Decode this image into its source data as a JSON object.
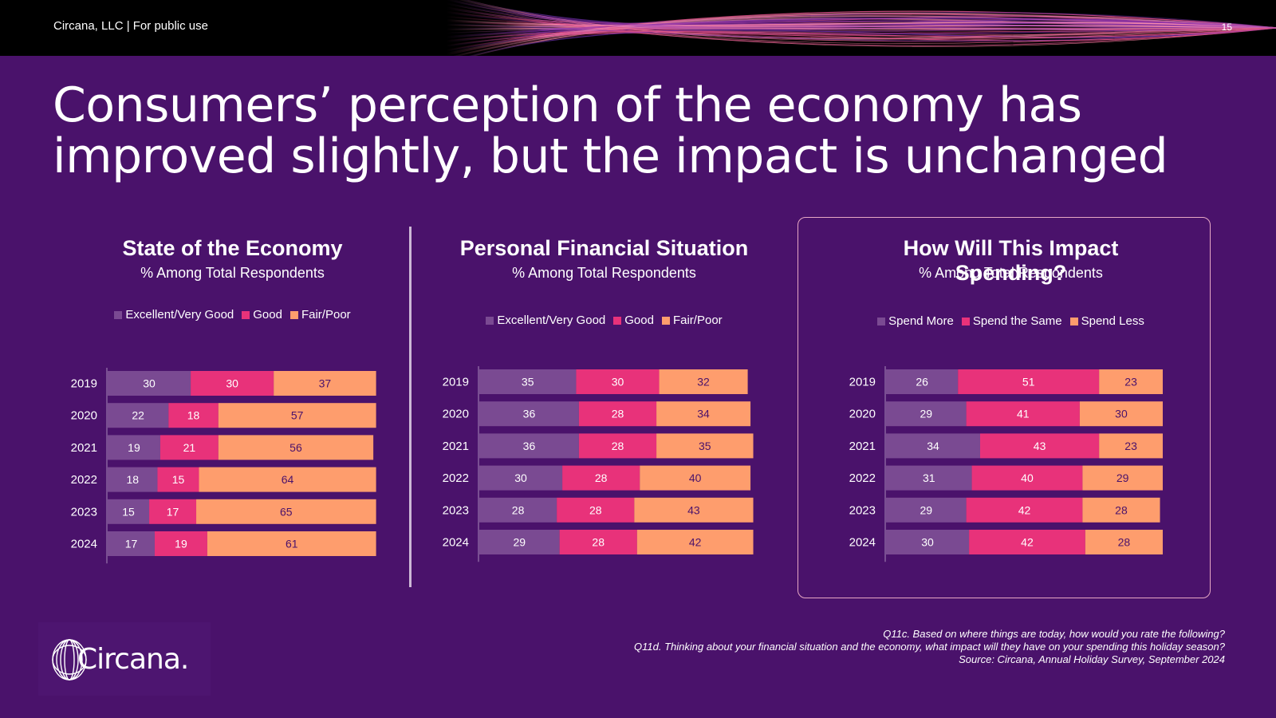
{
  "header": {
    "label": "Circana, LLC |  For public use",
    "page_number": "15"
  },
  "headline": {
    "line1": "Consumers’ perception of the economy has",
    "line2": "improved slightly, but the impact is unchanged"
  },
  "colors": {
    "background": "#4a126b",
    "series1": "#7a4a92",
    "series2": "#e8327a",
    "series3": "#fe9d6d",
    "divider": "#cdb8d6",
    "highlight_border": "#e7a8c4"
  },
  "chart_data": [
    {
      "type": "bar",
      "orientation": "horizontal-stacked",
      "title": "State of the Economy",
      "subtitle": "% Among Total Respondents",
      "categories": [
        "2019",
        "2020",
        "2021",
        "2022",
        "2023",
        "2024"
      ],
      "series": [
        {
          "name": "Excellent/Very Good",
          "values": [
            30,
            22,
            19,
            18,
            15,
            17
          ]
        },
        {
          "name": "Good",
          "values": [
            30,
            18,
            21,
            15,
            17,
            19
          ]
        },
        {
          "name": "Fair/Poor",
          "values": [
            37,
            57,
            56,
            64,
            65,
            61
          ]
        }
      ],
      "legend_position": "top"
    },
    {
      "type": "bar",
      "orientation": "horizontal-stacked",
      "title": "Personal Financial Situation",
      "subtitle": "% Among Total Respondents",
      "categories": [
        "2019",
        "2020",
        "2021",
        "2022",
        "2023",
        "2024"
      ],
      "series": [
        {
          "name": "Excellent/Very Good",
          "values": [
            35,
            36,
            36,
            30,
            28,
            29
          ]
        },
        {
          "name": "Good",
          "values": [
            30,
            28,
            28,
            28,
            28,
            28
          ]
        },
        {
          "name": "Fair/Poor",
          "values": [
            32,
            34,
            35,
            40,
            43,
            42
          ]
        }
      ],
      "legend_position": "top"
    },
    {
      "type": "bar",
      "orientation": "horizontal-stacked",
      "title": "How Will This Impact Spending?",
      "subtitle": "% Among Total Respondents",
      "categories": [
        "2019",
        "2020",
        "2021",
        "2022",
        "2023",
        "2024"
      ],
      "series": [
        {
          "name": "Spend More",
          "values": [
            26,
            29,
            34,
            31,
            29,
            30
          ]
        },
        {
          "name": "Spend the Same",
          "values": [
            51,
            41,
            43,
            40,
            42,
            42
          ]
        },
        {
          "name": "Spend Less",
          "values": [
            23,
            30,
            23,
            29,
            28,
            28
          ]
        }
      ],
      "legend_position": "top"
    }
  ],
  "footnote": {
    "line1": "Q11c. Based on where things are today, how would you rate the following?",
    "line2": "Q11d. Thinking about your financial situation and the economy, what impact will they have on your spending this holiday season?",
    "line3": "Source: Circana, Annual Holiday Survey, September 2024"
  },
  "logo": {
    "text": "Circana."
  }
}
